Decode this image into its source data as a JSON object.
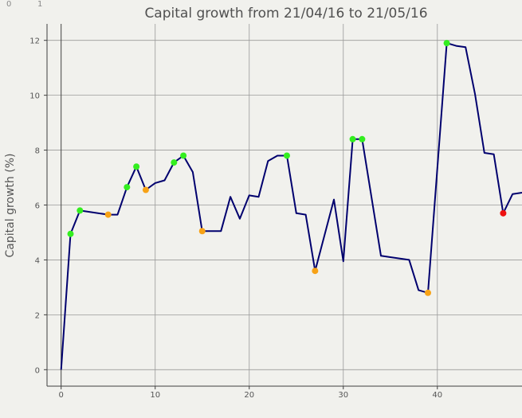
{
  "corner_labels": {
    "left": "0",
    "right": "1"
  },
  "colors": {
    "background": "#f1f1ed",
    "line": "#00006e",
    "grid": "#9a9a9a",
    "axis": "#404040",
    "marker_up": "#33ee1f",
    "marker_down": "#f7a216",
    "marker_last": "#ee1111"
  },
  "chart_data": {
    "type": "line",
    "title": "Capital growth from 21/04/16 to 21/05/16",
    "xlabel": "",
    "ylabel": "Capital growth (%)",
    "xlim": [
      -1.5,
      49
    ],
    "ylim": [
      -0.6,
      12.6
    ],
    "xticks": [
      0,
      10,
      20,
      30,
      40
    ],
    "yticks": [
      0,
      2,
      4,
      6,
      8,
      10,
      12
    ],
    "grid": true,
    "series": [
      {
        "x": [
          0,
          1,
          2,
          3,
          5,
          6,
          7,
          8,
          9,
          10,
          11,
          12,
          13,
          14,
          15,
          17,
          18,
          19,
          20,
          21,
          22,
          23,
          24,
          25,
          26,
          27,
          29,
          30,
          31,
          32,
          34,
          35,
          37,
          38,
          39,
          41,
          42,
          43,
          44,
          45,
          46,
          47,
          48,
          49
        ],
        "y": [
          0,
          4.95,
          5.8,
          5.75,
          5.65,
          5.65,
          6.65,
          7.4,
          6.55,
          6.8,
          6.9,
          7.55,
          7.8,
          7.2,
          5.05,
          5.05,
          6.3,
          5.5,
          6.35,
          6.3,
          7.6,
          7.8,
          7.8,
          5.7,
          5.65,
          3.6,
          6.2,
          3.95,
          8.4,
          8.4,
          4.15,
          4.1,
          4.0,
          2.9,
          2.8,
          11.9,
          11.8,
          11.75,
          10.05,
          7.9,
          7.85,
          5.7,
          6.4,
          6.45
        ]
      }
    ],
    "markers": {
      "up": {
        "x": [
          1,
          2,
          7,
          8,
          12,
          13,
          24,
          31,
          32,
          41
        ],
        "y": [
          4.95,
          5.8,
          6.65,
          7.4,
          7.55,
          7.8,
          7.8,
          8.4,
          8.4,
          11.9
        ]
      },
      "down": {
        "x": [
          5,
          9,
          15,
          27,
          39
        ],
        "y": [
          5.65,
          6.55,
          5.05,
          3.6,
          2.8
        ]
      },
      "last": {
        "x": [
          47
        ],
        "y": [
          5.7
        ]
      }
    }
  }
}
